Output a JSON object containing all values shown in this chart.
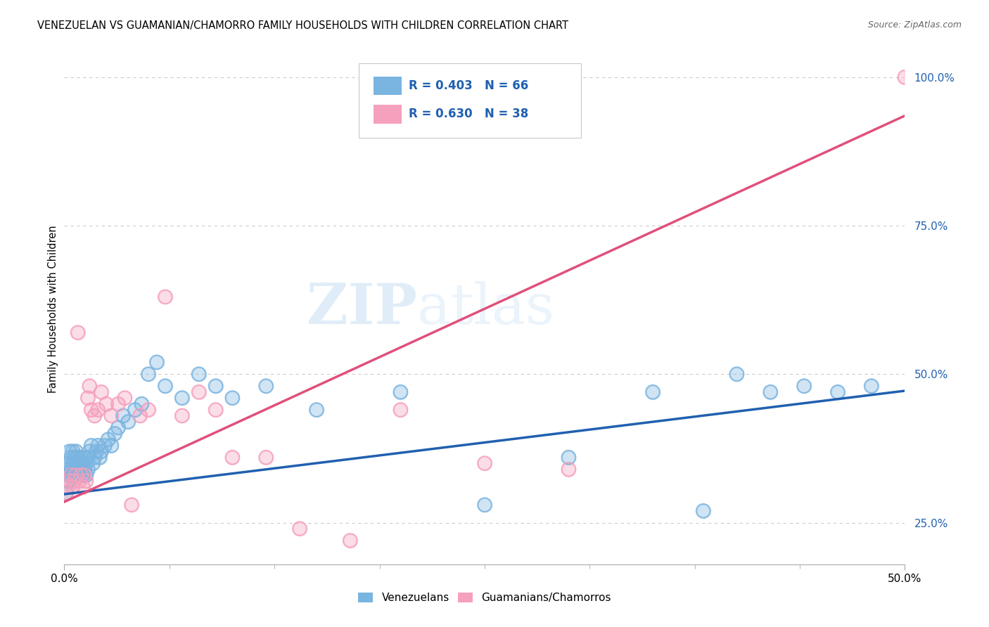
{
  "title": "VENEZUELAN VS GUAMANIAN/CHAMORRO FAMILY HOUSEHOLDS WITH CHILDREN CORRELATION CHART",
  "source": "Source: ZipAtlas.com",
  "ylabel": "Family Households with Children",
  "watermark_zip": "ZIP",
  "watermark_atlas": "atlas",
  "legend_line1": "R = 0.403   N = 66",
  "legend_line2": "R = 0.630   N = 38",
  "venezuelan_color": "#7ab4e0",
  "guamanian_color": "#f5a0bc",
  "venezuelan_line_color": "#2060b0",
  "guamanian_line_color": "#e0507a",
  "venezuelan_x": [
    0.001,
    0.002,
    0.002,
    0.003,
    0.003,
    0.003,
    0.004,
    0.004,
    0.005,
    0.005,
    0.005,
    0.006,
    0.006,
    0.007,
    0.007,
    0.007,
    0.008,
    0.008,
    0.009,
    0.009,
    0.01,
    0.01,
    0.011,
    0.011,
    0.012,
    0.012,
    0.013,
    0.013,
    0.014,
    0.014,
    0.015,
    0.016,
    0.017,
    0.018,
    0.019,
    0.02,
    0.021,
    0.022,
    0.024,
    0.026,
    0.028,
    0.03,
    0.032,
    0.035,
    0.038,
    0.042,
    0.046,
    0.05,
    0.055,
    0.06,
    0.07,
    0.08,
    0.09,
    0.1,
    0.12,
    0.15,
    0.2,
    0.25,
    0.3,
    0.35,
    0.38,
    0.4,
    0.42,
    0.44,
    0.46,
    0.48
  ],
  "venezuelan_y": [
    0.3,
    0.32,
    0.34,
    0.33,
    0.35,
    0.37,
    0.34,
    0.36,
    0.33,
    0.35,
    0.37,
    0.34,
    0.36,
    0.33,
    0.35,
    0.37,
    0.34,
    0.36,
    0.33,
    0.35,
    0.34,
    0.36,
    0.33,
    0.35,
    0.34,
    0.36,
    0.33,
    0.35,
    0.34,
    0.36,
    0.37,
    0.38,
    0.35,
    0.36,
    0.37,
    0.38,
    0.36,
    0.37,
    0.38,
    0.39,
    0.38,
    0.4,
    0.41,
    0.43,
    0.42,
    0.44,
    0.45,
    0.5,
    0.52,
    0.48,
    0.46,
    0.5,
    0.48,
    0.46,
    0.48,
    0.44,
    0.47,
    0.28,
    0.36,
    0.47,
    0.27,
    0.5,
    0.47,
    0.48,
    0.47,
    0.48
  ],
  "guamanian_x": [
    0.001,
    0.002,
    0.003,
    0.004,
    0.005,
    0.006,
    0.007,
    0.008,
    0.009,
    0.01,
    0.011,
    0.012,
    0.013,
    0.014,
    0.015,
    0.016,
    0.018,
    0.02,
    0.022,
    0.025,
    0.028,
    0.032,
    0.036,
    0.04,
    0.045,
    0.05,
    0.06,
    0.07,
    0.08,
    0.09,
    0.1,
    0.12,
    0.14,
    0.17,
    0.2,
    0.25,
    0.3,
    0.5
  ],
  "guamanian_y": [
    0.3,
    0.31,
    0.32,
    0.33,
    0.31,
    0.32,
    0.33,
    0.57,
    0.32,
    0.33,
    0.31,
    0.33,
    0.32,
    0.46,
    0.48,
    0.44,
    0.43,
    0.44,
    0.47,
    0.45,
    0.43,
    0.45,
    0.46,
    0.28,
    0.43,
    0.44,
    0.63,
    0.43,
    0.47,
    0.44,
    0.36,
    0.36,
    0.24,
    0.22,
    0.44,
    0.35,
    0.34,
    1.0
  ],
  "ven_trend": [
    0.298,
    0.472
  ],
  "gua_trend": [
    0.285,
    0.935
  ],
  "xlim": [
    0.0,
    0.5
  ],
  "ylim": [
    0.18,
    1.04
  ],
  "yticks": [
    0.25,
    0.5,
    0.75,
    1.0
  ],
  "ytick_labels": [
    "25.0%",
    "50.0%",
    "75.0%",
    "100.0%"
  ],
  "background_color": "#ffffff",
  "grid_color": "#cccccc"
}
